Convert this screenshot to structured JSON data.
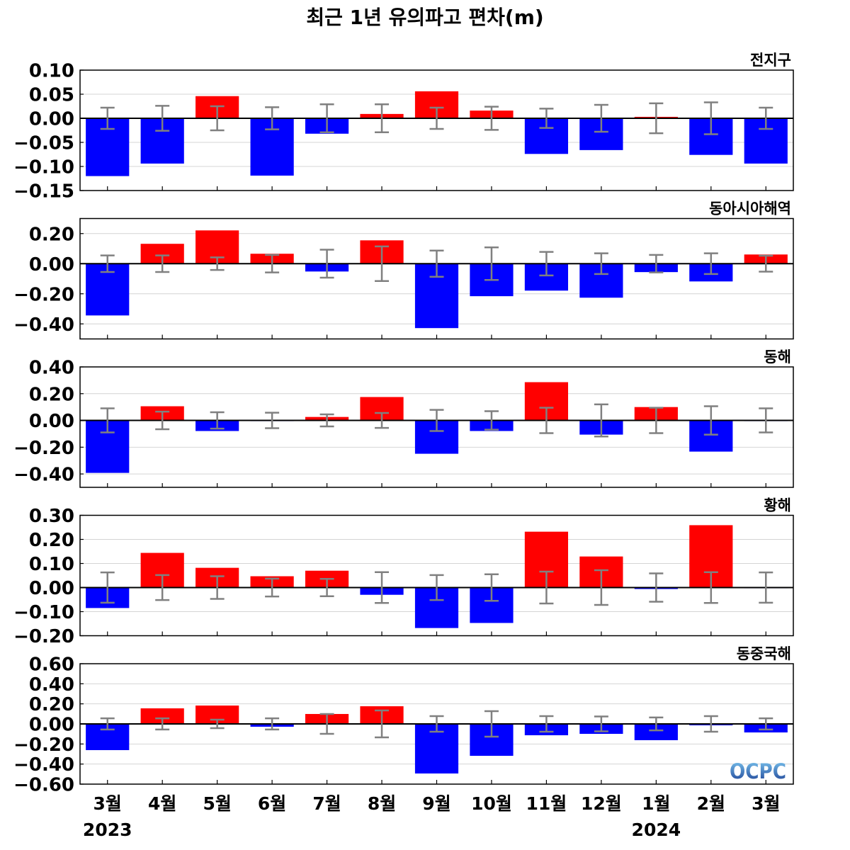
{
  "chart_data": {
    "type": "bar",
    "title": "최근 1년 유의파고 편차(m)",
    "categories": [
      "3월",
      "4월",
      "5월",
      "6월",
      "7월",
      "8월",
      "9월",
      "10월",
      "11월",
      "12월",
      "1월",
      "2월",
      "3월"
    ],
    "year_labels": [
      {
        "text": "2023",
        "category_index": 0
      },
      {
        "text": "2024",
        "category_index": 10
      }
    ],
    "grid": true,
    "colors": {
      "positive": "#ff0000",
      "negative": "#0000ff",
      "error_bar": "#808080",
      "zero_line": "#000000",
      "grid": "#d4d4d4"
    },
    "series": [
      {
        "name": "전지구",
        "ylim": [
          -0.15,
          0.1
        ],
        "yticks": [
          0.1,
          0.05,
          0.0,
          -0.05,
          -0.1,
          -0.15
        ],
        "ytick_labels": [
          "0.10",
          "0.05",
          "0.00",
          "−0.05",
          "−0.10",
          "−0.15"
        ],
        "values": [
          -0.12,
          -0.094,
          0.046,
          -0.119,
          -0.032,
          0.009,
          0.056,
          0.016,
          -0.074,
          -0.066,
          0.003,
          -0.076,
          -0.094
        ],
        "error_bar": [
          [
            -0.022,
            0.022
          ],
          [
            -0.026,
            0.026
          ],
          [
            -0.025,
            0.025
          ],
          [
            -0.023,
            0.023
          ],
          [
            -0.029,
            0.029
          ],
          [
            -0.029,
            0.029
          ],
          [
            -0.022,
            0.022
          ],
          [
            -0.024,
            0.024
          ],
          [
            -0.02,
            0.02
          ],
          [
            -0.028,
            0.028
          ],
          [
            -0.031,
            0.031
          ],
          [
            -0.033,
            0.033
          ],
          [
            -0.022,
            0.022
          ]
        ]
      },
      {
        "name": "동아시아해역",
        "ylim": [
          -0.5,
          0.3
        ],
        "yticks": [
          0.2,
          0.0,
          -0.2,
          -0.4
        ],
        "ytick_labels": [
          "0.20",
          "0.00",
          "−0.20",
          "−0.40"
        ],
        "values": [
          -0.344,
          0.132,
          0.221,
          0.066,
          -0.052,
          0.155,
          -0.428,
          -0.216,
          -0.179,
          -0.226,
          -0.056,
          -0.118,
          0.061
        ],
        "error_bar": [
          [
            -0.055,
            0.055
          ],
          [
            -0.055,
            0.055
          ],
          [
            -0.042,
            0.042
          ],
          [
            -0.058,
            0.058
          ],
          [
            -0.093,
            0.093
          ],
          [
            -0.115,
            0.115
          ],
          [
            -0.087,
            0.087
          ],
          [
            -0.108,
            0.108
          ],
          [
            -0.078,
            0.078
          ],
          [
            -0.069,
            0.069
          ],
          [
            -0.058,
            0.058
          ],
          [
            -0.069,
            0.069
          ],
          [
            -0.053,
            0.053
          ]
        ]
      },
      {
        "name": "동해",
        "ylim": [
          -0.5,
          0.4
        ],
        "yticks": [
          0.4,
          0.2,
          0.0,
          -0.2,
          -0.4
        ],
        "ytick_labels": [
          "0.40",
          "0.20",
          "0.00",
          "−0.20",
          "−0.40"
        ],
        "values": [
          -0.392,
          0.106,
          -0.079,
          -0.005,
          0.026,
          0.175,
          -0.249,
          -0.079,
          0.286,
          -0.106,
          0.1,
          -0.233,
          -0.005
        ],
        "error_bar": [
          [
            -0.09,
            0.09
          ],
          [
            -0.066,
            0.066
          ],
          [
            -0.061,
            0.061
          ],
          [
            -0.058,
            0.058
          ],
          [
            -0.045,
            0.045
          ],
          [
            -0.056,
            0.056
          ],
          [
            -0.079,
            0.079
          ],
          [
            -0.069,
            0.069
          ],
          [
            -0.095,
            0.095
          ],
          [
            -0.12,
            0.12
          ],
          [
            -0.095,
            0.095
          ],
          [
            -0.106,
            0.106
          ],
          [
            -0.09,
            0.09
          ]
        ]
      },
      {
        "name": "황해",
        "ylim": [
          -0.2,
          0.3
        ],
        "yticks": [
          0.3,
          0.2,
          0.1,
          0.0,
          -0.1,
          -0.2
        ],
        "ytick_labels": [
          "0.30",
          "0.20",
          "0.10",
          "0.00",
          "−0.10",
          "−0.20"
        ],
        "values": [
          -0.085,
          0.144,
          0.082,
          0.047,
          0.07,
          -0.03,
          -0.168,
          -0.147,
          0.232,
          0.129,
          -0.006,
          0.259,
          -0.003
        ],
        "error_bar": [
          [
            -0.063,
            0.063
          ],
          [
            -0.052,
            0.052
          ],
          [
            -0.047,
            0.047
          ],
          [
            -0.037,
            0.037
          ],
          [
            -0.036,
            0.036
          ],
          [
            -0.064,
            0.064
          ],
          [
            -0.052,
            0.052
          ],
          [
            -0.055,
            0.055
          ],
          [
            -0.066,
            0.066
          ],
          [
            -0.072,
            0.072
          ],
          [
            -0.059,
            0.059
          ],
          [
            -0.064,
            0.064
          ],
          [
            -0.063,
            0.063
          ]
        ]
      },
      {
        "name": "동중국해",
        "ylim": [
          -0.6,
          0.6
        ],
        "yticks": [
          0.6,
          0.4,
          0.2,
          0.0,
          -0.2,
          -0.4,
          -0.6
        ],
        "ytick_labels": [
          "0.60",
          "0.40",
          "0.20",
          "0.00",
          "−0.20",
          "−0.40",
          "−0.60"
        ],
        "values": [
          -0.261,
          0.155,
          0.183,
          -0.028,
          0.099,
          0.176,
          -0.494,
          -0.318,
          -0.113,
          -0.099,
          -0.162,
          -0.014,
          -0.085
        ],
        "error_bar": [
          [
            -0.056,
            0.056
          ],
          [
            -0.056,
            0.056
          ],
          [
            -0.042,
            0.042
          ],
          [
            -0.056,
            0.056
          ],
          [
            -0.099,
            0.099
          ],
          [
            -0.134,
            0.134
          ],
          [
            -0.078,
            0.078
          ],
          [
            -0.127,
            0.127
          ],
          [
            -0.078,
            0.078
          ],
          [
            -0.074,
            0.074
          ],
          [
            -0.064,
            0.064
          ],
          [
            -0.078,
            0.078
          ],
          [
            -0.056,
            0.056
          ]
        ]
      }
    ]
  },
  "logo": {
    "text": "OCPC",
    "gradient_top": "#7cc7f0",
    "gradient_bottom": "#1b3f94"
  }
}
